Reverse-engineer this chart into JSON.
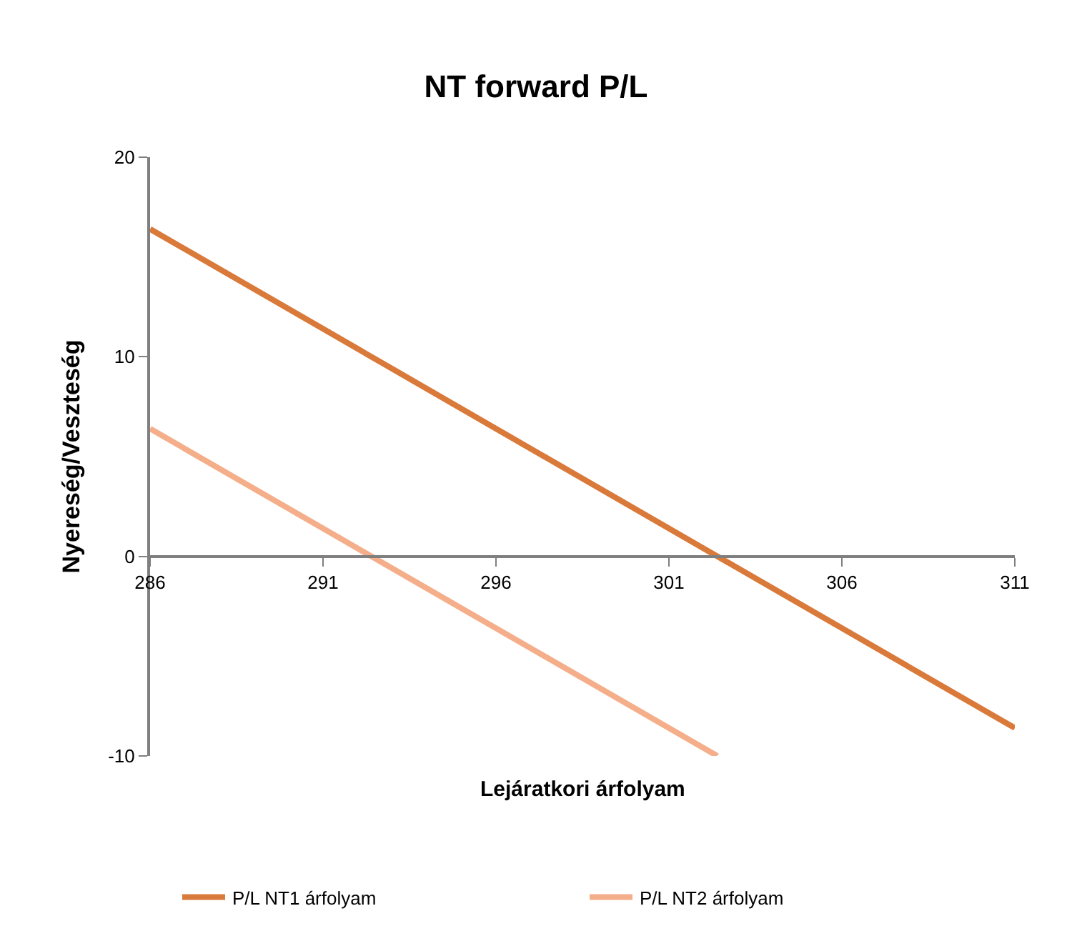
{
  "chart_data": {
    "type": "line",
    "title": "NT forward P/L",
    "xlabel": "Lejáratkori árfolyam",
    "ylabel": "Nyereség/Veszteség",
    "series": [
      {
        "name": "P/L NT1 árfolyam",
        "color": "#d9793a",
        "x": [
          286,
          311
        ],
        "values": [
          16.4,
          -8.6
        ]
      },
      {
        "name": "P/L NT2 árfolyam",
        "color": "#f5ae8a",
        "x": [
          286,
          302.4
        ],
        "values": [
          6.4,
          -10
        ]
      }
    ],
    "xlim": [
      286,
      311
    ],
    "xticks": [
      286,
      291,
      296,
      301,
      306,
      311
    ],
    "ylim": [
      -10,
      20
    ],
    "yticks": [
      -10,
      0,
      10,
      20
    ],
    "legend": "bottom",
    "marker": "none",
    "line_style": "solid"
  }
}
